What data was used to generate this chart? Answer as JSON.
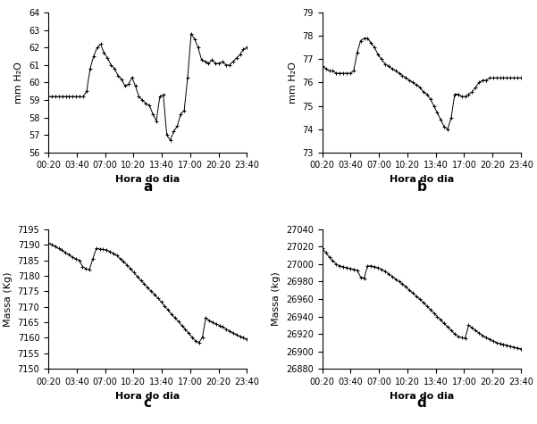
{
  "panel_a": {
    "ylabel": "mm H₂O",
    "xlabel": "Hora do dia",
    "label": "a",
    "ylim": [
      56,
      64
    ],
    "yticks": [
      56,
      57,
      58,
      59,
      60,
      61,
      62,
      63,
      64
    ],
    "xticks": [
      "00:20",
      "03:40",
      "07:00",
      "10:20",
      "13:40",
      "17:00",
      "20:20",
      "23:40"
    ],
    "data": [
      [
        0,
        59.2
      ],
      [
        1,
        59.2
      ],
      [
        2,
        59.2
      ],
      [
        3,
        59.2
      ],
      [
        4,
        59.2
      ],
      [
        5,
        59.2
      ],
      [
        6,
        59.2
      ],
      [
        7,
        59.2
      ],
      [
        8,
        59.2
      ],
      [
        9,
        59.2
      ],
      [
        10,
        59.2
      ],
      [
        11,
        59.5
      ],
      [
        12,
        60.8
      ],
      [
        13,
        61.5
      ],
      [
        14,
        62.0
      ],
      [
        15,
        62.2
      ],
      [
        16,
        61.7
      ],
      [
        17,
        61.4
      ],
      [
        18,
        61.0
      ],
      [
        19,
        60.8
      ],
      [
        20,
        60.4
      ],
      [
        21,
        60.2
      ],
      [
        22,
        59.8
      ],
      [
        23,
        59.9
      ],
      [
        24,
        60.3
      ],
      [
        25,
        59.8
      ],
      [
        26,
        59.2
      ],
      [
        27,
        59.0
      ],
      [
        28,
        58.8
      ],
      [
        29,
        58.7
      ],
      [
        30,
        58.2
      ],
      [
        31,
        57.8
      ],
      [
        32,
        59.2
      ],
      [
        33,
        59.3
      ],
      [
        34,
        57.0
      ],
      [
        35,
        56.7
      ],
      [
        36,
        57.2
      ],
      [
        37,
        57.5
      ],
      [
        38,
        58.2
      ],
      [
        39,
        58.4
      ],
      [
        40,
        60.3
      ],
      [
        41,
        62.8
      ],
      [
        42,
        62.5
      ],
      [
        43,
        62.0
      ],
      [
        44,
        61.3
      ],
      [
        45,
        61.2
      ],
      [
        46,
        61.1
      ],
      [
        47,
        61.3
      ],
      [
        48,
        61.1
      ],
      [
        49,
        61.1
      ],
      [
        50,
        61.2
      ],
      [
        51,
        61.0
      ],
      [
        52,
        61.0
      ],
      [
        53,
        61.2
      ],
      [
        54,
        61.4
      ],
      [
        55,
        61.6
      ],
      [
        56,
        61.9
      ],
      [
        57,
        62.0
      ]
    ]
  },
  "panel_b": {
    "ylabel": "mm H₂O",
    "xlabel": "Hora do dia",
    "label": "b",
    "ylim": [
      73,
      79
    ],
    "yticks": [
      73,
      74,
      75,
      76,
      77,
      78,
      79
    ],
    "xticks": [
      "00:20",
      "03:40",
      "07:00",
      "10:20",
      "13:40",
      "17:00",
      "20:20",
      "23:40"
    ],
    "data": [
      [
        0,
        76.7
      ],
      [
        1,
        76.6
      ],
      [
        2,
        76.5
      ],
      [
        3,
        76.5
      ],
      [
        4,
        76.4
      ],
      [
        5,
        76.4
      ],
      [
        6,
        76.4
      ],
      [
        7,
        76.4
      ],
      [
        8,
        76.4
      ],
      [
        9,
        76.5
      ],
      [
        10,
        77.3
      ],
      [
        11,
        77.8
      ],
      [
        12,
        77.9
      ],
      [
        13,
        77.9
      ],
      [
        14,
        77.7
      ],
      [
        15,
        77.5
      ],
      [
        16,
        77.2
      ],
      [
        17,
        77.0
      ],
      [
        18,
        76.8
      ],
      [
        19,
        76.7
      ],
      [
        20,
        76.6
      ],
      [
        21,
        76.5
      ],
      [
        22,
        76.4
      ],
      [
        23,
        76.3
      ],
      [
        24,
        76.2
      ],
      [
        25,
        76.1
      ],
      [
        26,
        76.0
      ],
      [
        27,
        75.9
      ],
      [
        28,
        75.8
      ],
      [
        29,
        75.6
      ],
      [
        30,
        75.5
      ],
      [
        31,
        75.3
      ],
      [
        32,
        75.0
      ],
      [
        33,
        74.7
      ],
      [
        34,
        74.4
      ],
      [
        35,
        74.1
      ],
      [
        36,
        74.0
      ],
      [
        37,
        74.5
      ],
      [
        38,
        75.5
      ],
      [
        39,
        75.5
      ],
      [
        40,
        75.4
      ],
      [
        41,
        75.4
      ],
      [
        42,
        75.5
      ],
      [
        43,
        75.6
      ],
      [
        44,
        75.8
      ],
      [
        45,
        76.0
      ],
      [
        46,
        76.1
      ],
      [
        47,
        76.1
      ],
      [
        48,
        76.2
      ],
      [
        49,
        76.2
      ],
      [
        50,
        76.2
      ],
      [
        51,
        76.2
      ],
      [
        52,
        76.2
      ],
      [
        53,
        76.2
      ],
      [
        54,
        76.2
      ],
      [
        55,
        76.2
      ],
      [
        56,
        76.2
      ],
      [
        57,
        76.2
      ]
    ]
  },
  "panel_c": {
    "ylabel": "Massa (Kg)",
    "xlabel": "Hora do dia",
    "label": "c",
    "ylim": [
      7150,
      7195
    ],
    "yticks": [
      7150,
      7155,
      7160,
      7165,
      7170,
      7175,
      7180,
      7185,
      7190,
      7195
    ],
    "xticks": [
      "00:20",
      "03:40",
      "07:00",
      "10:20",
      "13:40",
      "17:00",
      "20:20",
      "23:40"
    ],
    "data": [
      [
        0,
        7190.5
      ],
      [
        1,
        7190.0
      ],
      [
        2,
        7189.5
      ],
      [
        3,
        7188.8
      ],
      [
        4,
        7188.2
      ],
      [
        5,
        7187.5
      ],
      [
        6,
        7186.8
      ],
      [
        7,
        7186.0
      ],
      [
        8,
        7185.5
      ],
      [
        9,
        7185.0
      ],
      [
        10,
        7183.0
      ],
      [
        11,
        7182.2
      ],
      [
        12,
        7182.0
      ],
      [
        13,
        7185.5
      ],
      [
        14,
        7188.8
      ],
      [
        15,
        7188.6
      ],
      [
        16,
        7188.5
      ],
      [
        17,
        7188.3
      ],
      [
        18,
        7187.8
      ],
      [
        19,
        7187.2
      ],
      [
        20,
        7186.5
      ],
      [
        21,
        7185.5
      ],
      [
        22,
        7184.5
      ],
      [
        23,
        7183.5
      ],
      [
        24,
        7182.2
      ],
      [
        25,
        7181.0
      ],
      [
        26,
        7179.8
      ],
      [
        27,
        7178.5
      ],
      [
        28,
        7177.5
      ],
      [
        29,
        7176.2
      ],
      [
        30,
        7175.0
      ],
      [
        31,
        7174.0
      ],
      [
        32,
        7172.8
      ],
      [
        33,
        7171.5
      ],
      [
        34,
        7170.2
      ],
      [
        35,
        7169.0
      ],
      [
        36,
        7167.5
      ],
      [
        37,
        7166.5
      ],
      [
        38,
        7165.2
      ],
      [
        39,
        7164.0
      ],
      [
        40,
        7162.8
      ],
      [
        41,
        7161.5
      ],
      [
        42,
        7160.2
      ],
      [
        43,
        7159.0
      ],
      [
        44,
        7158.5
      ],
      [
        45,
        7160.2
      ],
      [
        46,
        7166.5
      ],
      [
        47,
        7165.5
      ],
      [
        48,
        7165.0
      ],
      [
        49,
        7164.5
      ],
      [
        50,
        7164.0
      ],
      [
        51,
        7163.5
      ],
      [
        52,
        7162.8
      ],
      [
        53,
        7162.2
      ],
      [
        54,
        7161.5
      ],
      [
        55,
        7161.0
      ],
      [
        56,
        7160.5
      ],
      [
        57,
        7160.0
      ],
      [
        58,
        7159.5
      ]
    ]
  },
  "panel_d": {
    "ylabel": "Massa (kg)",
    "xlabel": "Hora do dia",
    "label": "d",
    "ylim": [
      26880,
      27040
    ],
    "yticks": [
      26880,
      26900,
      26920,
      26940,
      26960,
      26980,
      27000,
      27020,
      27040
    ],
    "xticks": [
      "00:20",
      "03:40",
      "07:00",
      "10:20",
      "13:40",
      "17:00",
      "20:20",
      "23:40"
    ],
    "data": [
      [
        0,
        27018
      ],
      [
        1,
        27013
      ],
      [
        2,
        27008
      ],
      [
        3,
        27004
      ],
      [
        4,
        27000
      ],
      [
        5,
        26998
      ],
      [
        6,
        26997
      ],
      [
        7,
        26996
      ],
      [
        8,
        26995
      ],
      [
        9,
        26994
      ],
      [
        10,
        26993
      ],
      [
        11,
        26985
      ],
      [
        12,
        26984
      ],
      [
        13,
        26998
      ],
      [
        14,
        26998
      ],
      [
        15,
        26997
      ],
      [
        16,
        26996
      ],
      [
        17,
        26994
      ],
      [
        18,
        26992
      ],
      [
        19,
        26989
      ],
      [
        20,
        26986
      ],
      [
        21,
        26983
      ],
      [
        22,
        26980
      ],
      [
        23,
        26977
      ],
      [
        24,
        26974
      ],
      [
        25,
        26970
      ],
      [
        26,
        26967
      ],
      [
        27,
        26963
      ],
      [
        28,
        26960
      ],
      [
        29,
        26956
      ],
      [
        30,
        26952
      ],
      [
        31,
        26948
      ],
      [
        32,
        26944
      ],
      [
        33,
        26940
      ],
      [
        34,
        26936
      ],
      [
        35,
        26932
      ],
      [
        36,
        26928
      ],
      [
        37,
        26924
      ],
      [
        38,
        26920
      ],
      [
        39,
        26917
      ],
      [
        40,
        26916
      ],
      [
        41,
        26915
      ],
      [
        42,
        26930
      ],
      [
        43,
        26927
      ],
      [
        44,
        26924
      ],
      [
        45,
        26921
      ],
      [
        46,
        26918
      ],
      [
        47,
        26916
      ],
      [
        48,
        26914
      ],
      [
        49,
        26912
      ],
      [
        50,
        26910
      ],
      [
        51,
        26909
      ],
      [
        52,
        26908
      ],
      [
        53,
        26907
      ],
      [
        54,
        26906
      ],
      [
        55,
        26905
      ],
      [
        56,
        26904
      ],
      [
        57,
        26903
      ]
    ]
  },
  "line_color": "#000000",
  "marker": "+",
  "markersize": 3.5,
  "linewidth": 0.7,
  "markeredgewidth": 0.7,
  "tick_fontsize": 7,
  "label_fontsize": 8,
  "sublabel_fontsize": 11
}
